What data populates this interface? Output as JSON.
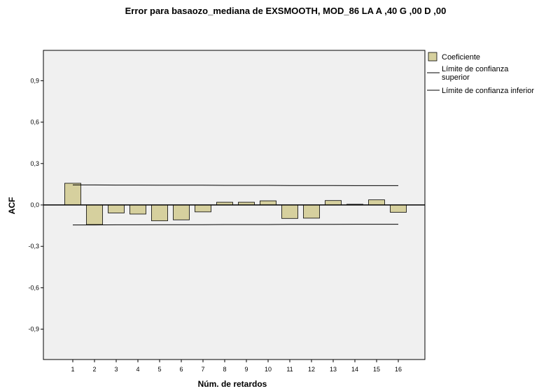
{
  "chart_data": {
    "type": "bar",
    "title": "Error para basaozo_mediana de EXSMOOTH, MOD_86 LA A ,40 G ,00 D ,00",
    "xlabel": "Núm. de retardos",
    "ylabel": "ACF",
    "ylim": [
      -1.12,
      1.12
    ],
    "yticks": [
      0.9,
      0.6,
      0.3,
      0.0,
      -0.3,
      -0.6,
      -0.9
    ],
    "ytick_labels": [
      "0,9",
      "0,6",
      "0,3",
      "0,0",
      "-0,3",
      "-0,6",
      "-0,9"
    ],
    "categories": [
      "1",
      "2",
      "3",
      "4",
      "5",
      "6",
      "7",
      "8",
      "9",
      "10",
      "11",
      "12",
      "13",
      "14",
      "15",
      "16"
    ],
    "series": [
      {
        "name": "Coeficiente",
        "values": [
          0.157,
          -0.142,
          -0.058,
          -0.066,
          -0.115,
          -0.108,
          -0.05,
          0.02,
          0.02,
          0.03,
          -0.098,
          -0.096,
          0.032,
          0.005,
          0.037,
          -0.053
        ]
      }
    ],
    "upper_limit": [
      0.145,
      0.145,
      0.144,
      0.144,
      0.143,
      0.143,
      0.143,
      0.142,
      0.142,
      0.142,
      0.141,
      0.141,
      0.141,
      0.14,
      0.14,
      0.14
    ],
    "lower_limit": [
      -0.145,
      -0.145,
      -0.144,
      -0.144,
      -0.143,
      -0.143,
      -0.143,
      -0.142,
      -0.142,
      -0.142,
      -0.141,
      -0.141,
      -0.141,
      -0.14,
      -0.14,
      -0.14
    ],
    "legend": {
      "position": "top-right",
      "items": [
        {
          "label": "Coeficiente",
          "kind": "bar"
        },
        {
          "label": "Límite de confianza superior",
          "lines": [
            "Límite de confianza",
            "superior"
          ],
          "kind": "line"
        },
        {
          "label": "Límite de confianza inferior",
          "lines": [
            "Límite de confianza inferior"
          ],
          "kind": "line"
        }
      ]
    },
    "grid": false,
    "colors": {
      "bar_fill": "#d6d09e",
      "bar_stroke": "#000000",
      "plot_background": "#f0f0f0",
      "limit_line": "#000000"
    }
  }
}
